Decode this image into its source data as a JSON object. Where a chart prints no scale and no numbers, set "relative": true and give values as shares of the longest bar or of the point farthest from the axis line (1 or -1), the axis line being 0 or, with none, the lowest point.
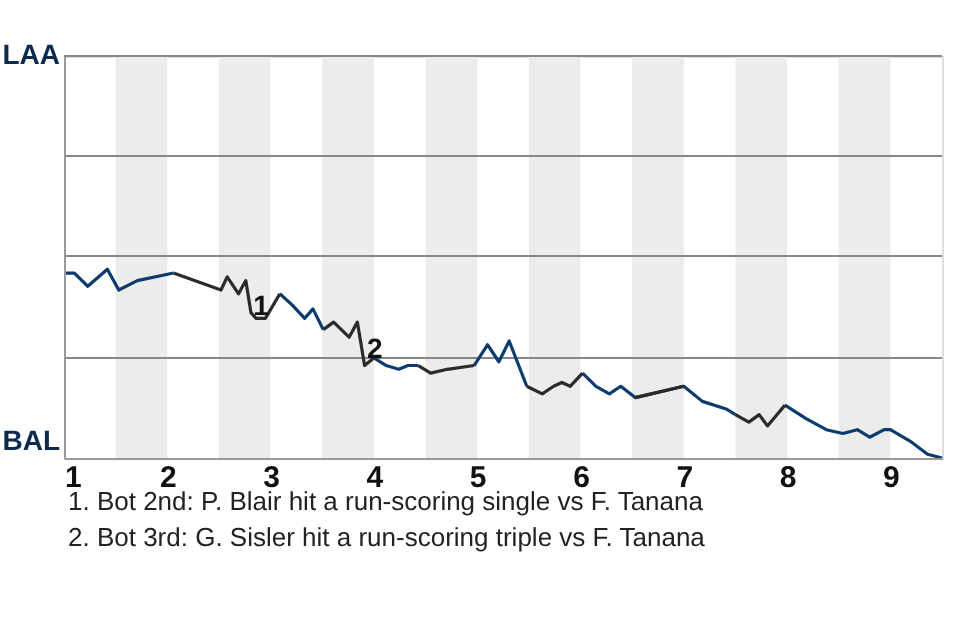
{
  "chart_data": {
    "type": "line",
    "relative": true,
    "x": [
      1.0,
      1.1,
      1.23,
      1.42,
      1.53,
      1.71,
      2.06,
      2.52,
      2.58,
      2.69,
      2.76,
      2.81,
      2.86,
      2.95,
      3.09,
      3.21,
      3.33,
      3.41,
      3.51,
      3.61,
      3.76,
      3.84,
      3.91,
      4.0,
      4.12,
      4.24,
      4.33,
      4.43,
      4.55,
      4.71,
      4.97,
      5.1,
      5.21,
      5.31,
      5.48,
      5.63,
      5.74,
      5.82,
      5.9,
      6.02,
      6.15,
      6.28,
      6.39,
      6.53,
      7.0,
      7.18,
      7.41,
      7.5,
      7.63,
      7.73,
      7.81,
      7.98,
      8.18,
      8.38,
      8.54,
      8.68,
      8.8,
      8.94,
      9.0,
      9.19,
      9.36,
      9.5
    ],
    "series": [
      {
        "color": "#0c3b6e",
        "values": [
          0.98,
          0.98,
          0.91,
          1,
          0.89,
          0.94,
          0.98,
          null,
          null,
          null,
          null,
          null,
          null,
          null,
          0.87,
          0.81,
          0.74,
          0.79,
          0.68,
          null,
          null,
          null,
          null,
          0.53,
          0.49,
          0.47,
          0.49,
          0.49,
          null,
          null,
          0.49,
          0.6,
          0.51,
          0.62,
          0.38,
          null,
          null,
          null,
          null,
          0.45,
          0.38,
          0.34,
          0.38,
          0.32,
          0.38,
          0.3,
          0.26,
          0.23,
          null,
          null,
          null,
          0.28,
          0.21,
          0.15,
          0.13,
          0.15,
          0.11,
          0.15,
          0.15,
          0.09,
          0.02,
          0
        ]
      },
      {
        "color": "#2b2b2b",
        "values": [
          null,
          null,
          null,
          null,
          null,
          null,
          0.98,
          0.89,
          0.96,
          0.87,
          0.94,
          0.77,
          0.74,
          0.74,
          0.87,
          null,
          null,
          null,
          0.68,
          0.72,
          0.64,
          0.72,
          0.49,
          0.53,
          null,
          null,
          null,
          0.49,
          0.45,
          0.47,
          0.49,
          null,
          null,
          null,
          0.38,
          0.34,
          0.38,
          0.4,
          0.38,
          0.45,
          null,
          null,
          null,
          0.32,
          0.38,
          null,
          null,
          0.23,
          0.19,
          0.23,
          0.17,
          0.28,
          null,
          null,
          null,
          null,
          null,
          null,
          null,
          null,
          null,
          null
        ]
      }
    ],
    "xlim": [
      1,
      9.5
    ],
    "xticks": [
      1,
      2,
      3,
      4,
      5,
      6,
      7,
      8,
      9
    ],
    "ref_lines": [
      {
        "axis": "y",
        "value": 0.53,
        "color": "#888888"
      },
      {
        "axis": "y",
        "value": 1.07,
        "color": "#888888"
      },
      {
        "axis": "y",
        "value": 1.6,
        "color": "#888888"
      },
      {
        "axis": "y",
        "value": 2.13,
        "color": "#888888"
      }
    ],
    "bands": [
      {
        "axis": "x",
        "from": 1.5,
        "to": 2,
        "color": "#ececec"
      },
      {
        "axis": "x",
        "from": 2.5,
        "to": 3,
        "color": "#ececec"
      },
      {
        "axis": "x",
        "from": 3.5,
        "to": 4,
        "color": "#ececec"
      },
      {
        "axis": "x",
        "from": 4.5,
        "to": 5,
        "color": "#ececec"
      },
      {
        "axis": "x",
        "from": 5.5,
        "to": 6,
        "color": "#ececec"
      },
      {
        "axis": "x",
        "from": 6.5,
        "to": 7,
        "color": "#ececec"
      },
      {
        "axis": "x",
        "from": 7.5,
        "to": 8,
        "color": "#ececec"
      },
      {
        "axis": "x",
        "from": 8.5,
        "to": 9,
        "color": "#ececec"
      }
    ],
    "annotations": [
      {
        "text": "1",
        "x": 2.85,
        "y": 0.78
      },
      {
        "text": "2",
        "x": 3.95,
        "y": 0.55
      },
      "LAA",
      "BAL",
      "1. Bot 2nd: P. Blair hit a run-scoring single vs F. Tanana",
      "2. Bot 3rd: G. Sisler hit a run-scoring triple vs F. Tanana"
    ]
  }
}
